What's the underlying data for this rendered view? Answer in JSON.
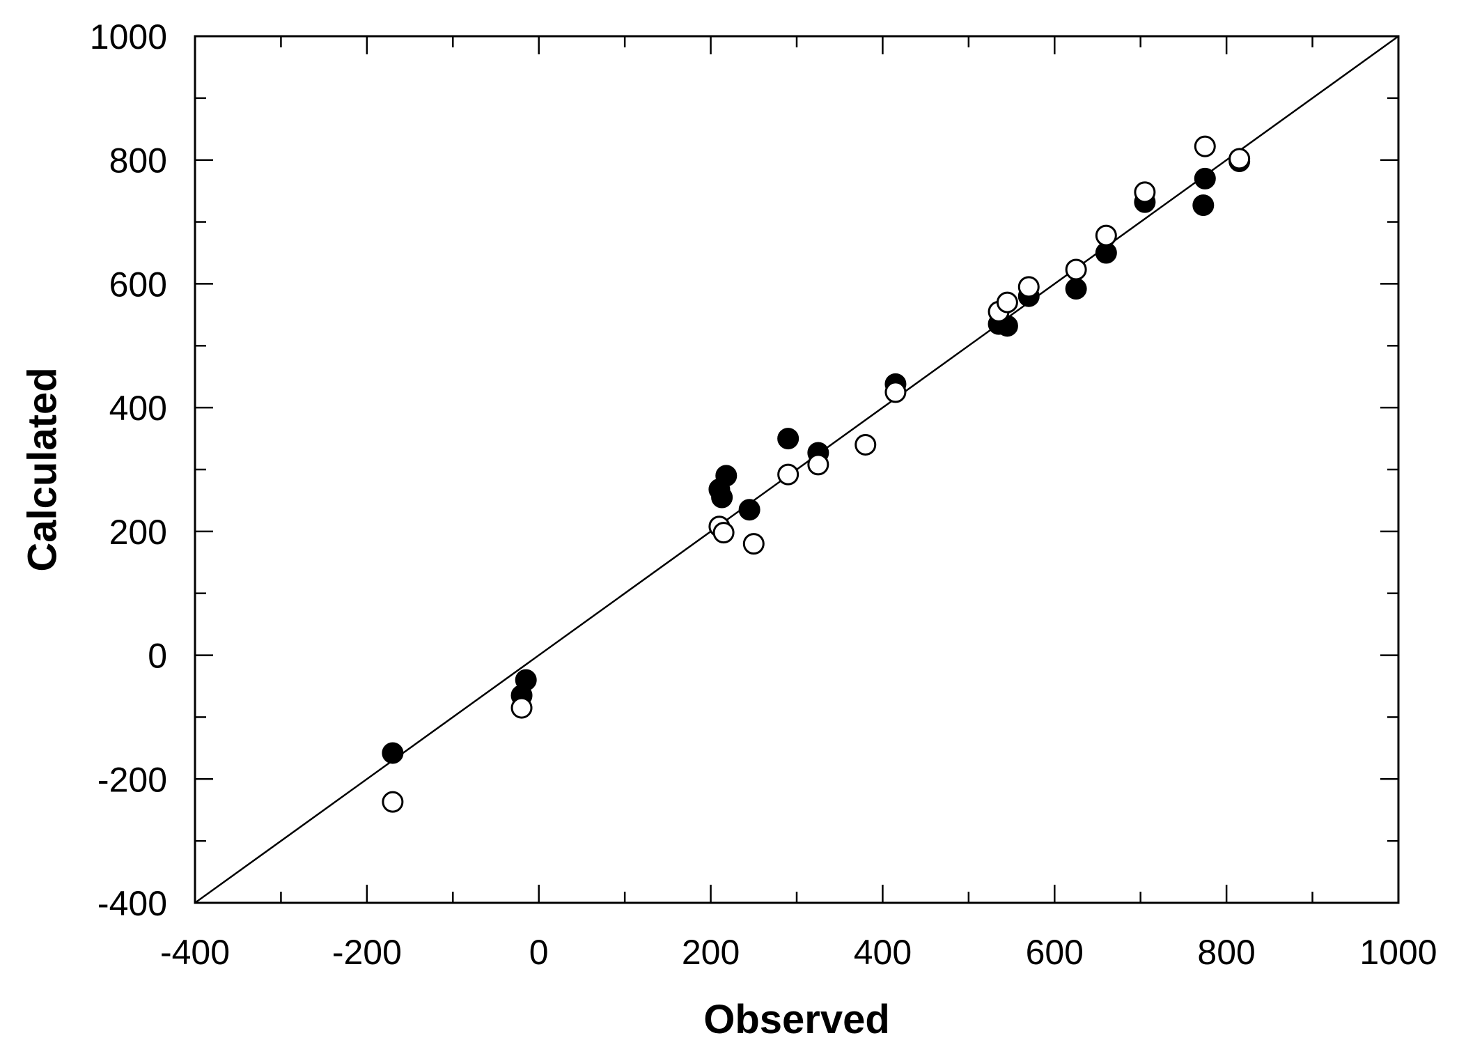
{
  "chart_data": {
    "type": "scatter",
    "title": "",
    "xlabel": "Observed",
    "ylabel": "Calculated",
    "xlim": [
      -400,
      1000
    ],
    "ylim": [
      -400,
      1000
    ],
    "xticks": [
      -400,
      -200,
      0,
      200,
      400,
      600,
      800,
      1000
    ],
    "yticks": [
      -400,
      -200,
      0,
      200,
      400,
      600,
      800,
      1000
    ],
    "xtick_labels": [
      "-400",
      "-200",
      "0",
      "200",
      "400",
      "600",
      "800",
      "1000"
    ],
    "ytick_labels": [
      "-400",
      "-200",
      "0",
      "200",
      "400",
      "600",
      "800",
      "1000"
    ],
    "minor_tick_step": 100,
    "grid": false,
    "legend": "none",
    "reference_line": {
      "from": [
        -400,
        -400
      ],
      "to": [
        1000,
        1000
      ]
    },
    "series": [
      {
        "marker": "filled-circle",
        "color": "#000000",
        "points": [
          [
            -170,
            -158
          ],
          [
            -15,
            -40
          ],
          [
            -20,
            -65
          ],
          [
            210,
            268
          ],
          [
            213,
            255
          ],
          [
            218,
            290
          ],
          [
            245,
            235
          ],
          [
            290,
            350
          ],
          [
            325,
            327
          ],
          [
            415,
            438
          ],
          [
            535,
            535
          ],
          [
            545,
            532
          ],
          [
            570,
            580
          ],
          [
            625,
            592
          ],
          [
            660,
            650
          ],
          [
            705,
            732
          ],
          [
            775,
            770
          ],
          [
            773,
            727
          ],
          [
            815,
            798
          ]
        ]
      },
      {
        "marker": "open-circle",
        "color": "#000000",
        "points": [
          [
            -170,
            -237
          ],
          [
            -20,
            -85
          ],
          [
            210,
            208
          ],
          [
            215,
            198
          ],
          [
            250,
            180
          ],
          [
            290,
            292
          ],
          [
            325,
            308
          ],
          [
            380,
            340
          ],
          [
            415,
            425
          ],
          [
            535,
            555
          ],
          [
            545,
            570
          ],
          [
            570,
            595
          ],
          [
            625,
            623
          ],
          [
            660,
            678
          ],
          [
            705,
            748
          ],
          [
            775,
            822
          ],
          [
            815,
            802
          ]
        ]
      }
    ]
  }
}
